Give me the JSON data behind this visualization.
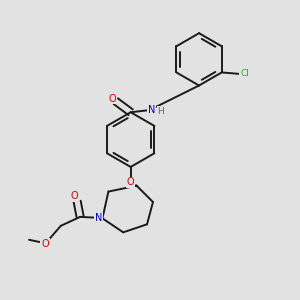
{
  "bg_color": "#e2e2e2",
  "bond_color": "#1a1a1a",
  "bond_width": 1.4,
  "atom_colors": {
    "O": "#dd0000",
    "N": "#0000cc",
    "Cl": "#22aa22",
    "H": "#666666",
    "C": "#1a1a1a"
  },
  "font_size": 7.0
}
